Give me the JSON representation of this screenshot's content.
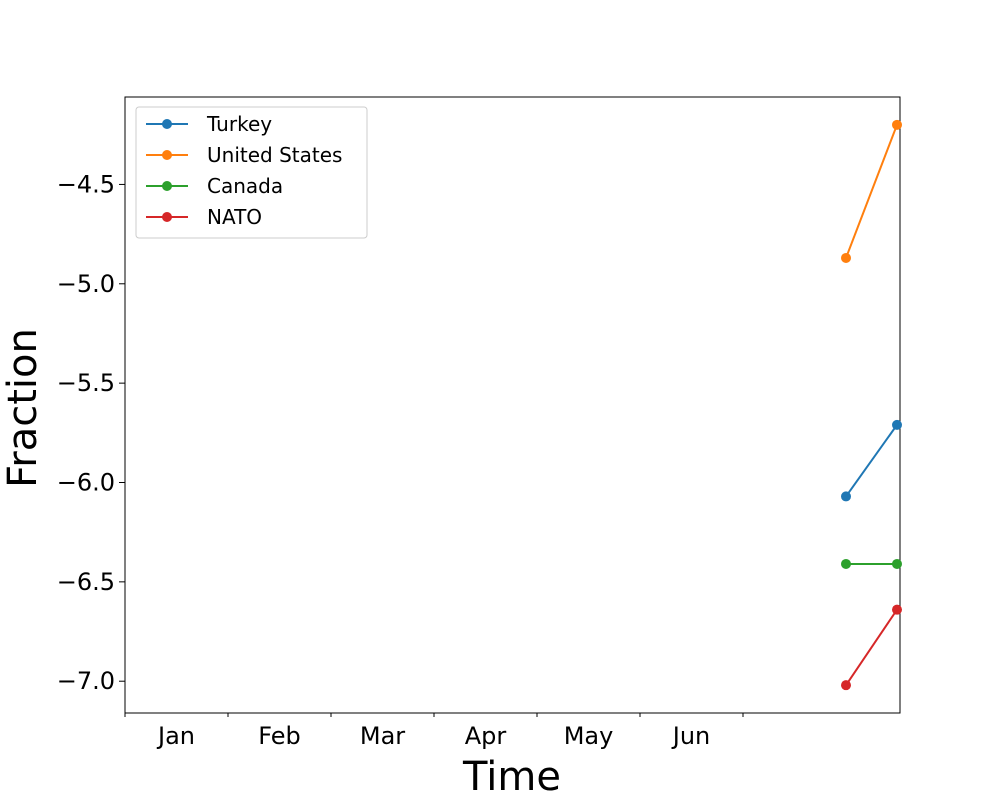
{
  "chart_data": {
    "type": "line",
    "title": "",
    "xlabel": "Time",
    "ylabel": "Fraction",
    "x_tick_labels": [
      "Jan",
      "Feb",
      "Mar",
      "Apr",
      "May",
      "Jun"
    ],
    "ylim": [
      -7.16,
      -4.06
    ],
    "yticks": [
      -7.0,
      -6.5,
      -6.0,
      -5.5,
      -5.0,
      -4.5
    ],
    "ytick_labels": [
      "−7.0",
      "−6.5",
      "−6.0",
      "−5.5",
      "−5.0",
      "−4.5"
    ],
    "legend_position": "top-left",
    "grid": false,
    "series": [
      {
        "name": "Turkey",
        "color": "#1f77b4",
        "values": [
          -6.07,
          -5.71
        ]
      },
      {
        "name": "United States",
        "color": "#ff7f0e",
        "values": [
          -4.87,
          -4.2
        ]
      },
      {
        "name": "Canada",
        "color": "#2ca02c",
        "values": [
          -6.41,
          -6.41
        ]
      },
      {
        "name": "NATO",
        "color": "#d62728",
        "values": [
          -7.02,
          -6.64
        ]
      }
    ]
  }
}
